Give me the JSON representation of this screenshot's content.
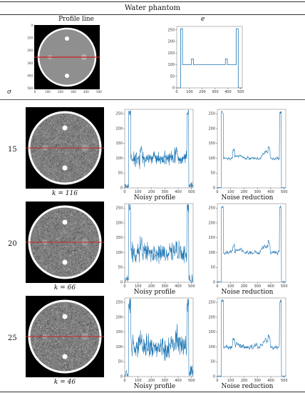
{
  "header": {
    "title": "Water phantom"
  },
  "top": {
    "col1_label": "Profile line",
    "col2_label": "e",
    "sigma_label": "σ",
    "phantom_ticks": [
      "0",
      "100",
      "200",
      "300",
      "400",
      "500"
    ],
    "profile_chart": {
      "x_ticks": [
        "0",
        "100",
        "200",
        "300",
        "400",
        "500"
      ],
      "y_ticks": [
        "0",
        "50",
        "100",
        "150",
        "200",
        "250"
      ]
    }
  },
  "rows": [
    {
      "sigma": "15",
      "k_label": "k = 116",
      "noisy_label": "Noisy profile",
      "reduced_label": "Noise reduction"
    },
    {
      "sigma": "20",
      "k_label": "k = 66",
      "noisy_label": "Noisy profile",
      "reduced_label": "Noise reduction"
    },
    {
      "sigma": "25",
      "k_label": "k = 46",
      "noisy_label": "Noisy profile",
      "reduced_label": "Noise reduction"
    }
  ],
  "axis_ticks": {
    "x": [
      "0",
      "100",
      "200",
      "300",
      "400",
      "500"
    ],
    "y": [
      "0",
      "50",
      "100",
      "150",
      "200",
      "250"
    ]
  },
  "colors": {
    "line": "#1f77b4",
    "profile_line": "#cc2222"
  },
  "chart_data": [
    {
      "type": "line",
      "xlim": [
        0,
        512
      ],
      "ylim": [
        0,
        265
      ],
      "series": [
        {
          "x": [
            0,
            30,
            30,
            45,
            45,
            115,
            115,
            130,
            130,
            380,
            380,
            395,
            395,
            465,
            465,
            480,
            480,
            512
          ],
          "y": [
            0,
            0,
            255,
            255,
            100,
            100,
            125,
            125,
            100,
            100,
            125,
            125,
            100,
            100,
            255,
            255,
            0,
            0
          ]
        }
      ]
    },
    {
      "type": "line",
      "title": "Noisy profile",
      "sigma": 15,
      "xlim": [
        0,
        512
      ],
      "ylim": [
        0,
        265
      ]
    },
    {
      "type": "line",
      "title": "Noise reduction",
      "sigma": 15,
      "xlim": [
        0,
        512
      ],
      "ylim": [
        0,
        265
      ]
    },
    {
      "type": "line",
      "title": "Noisy profile",
      "sigma": 20,
      "xlim": [
        0,
        512
      ],
      "ylim": [
        0,
        265
      ]
    },
    {
      "type": "line",
      "title": "Noise reduction",
      "sigma": 20,
      "xlim": [
        0,
        512
      ],
      "ylim": [
        0,
        265
      ]
    },
    {
      "type": "line",
      "title": "Noisy profile",
      "sigma": 25,
      "xlim": [
        0,
        512
      ],
      "ylim": [
        0,
        265
      ]
    },
    {
      "type": "line",
      "title": "Noise reduction",
      "sigma": 25,
      "xlim": [
        0,
        512
      ],
      "ylim": [
        0,
        265
      ]
    }
  ]
}
